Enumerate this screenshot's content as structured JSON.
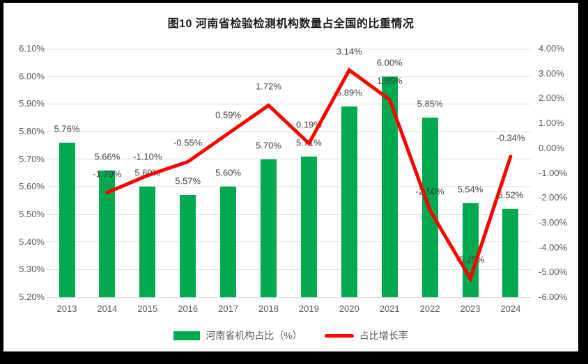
{
  "title": "图10  河南省检验检测机构数量占全国的比重情况",
  "colors": {
    "bar": "#00A84F",
    "line": "#FE0000",
    "gridline": "#D9D9D9",
    "axis_text": "#595959",
    "data_label": "#404040",
    "frame": "#000000",
    "background": "#FFFFFF"
  },
  "legend": {
    "bar_label": "河南省机构占比（%）",
    "line_label": "占比增长率"
  },
  "chart_data": {
    "type": "bar",
    "subtype": "combo bar+line, dual y-axis",
    "title": "图10  河南省检验检测机构数量占全国的比重情况",
    "categories": [
      "2013",
      "2014",
      "2015",
      "2016",
      "2017",
      "2018",
      "2019",
      "2020",
      "2021",
      "2022",
      "2023",
      "2024"
    ],
    "series": [
      {
        "name": "河南省机构占比（%）",
        "type": "bar",
        "axis": "left",
        "values": [
          5.76,
          5.66,
          5.6,
          5.57,
          5.6,
          5.7,
          5.71,
          5.89,
          6.0,
          5.85,
          5.54,
          5.52
        ],
        "labels": [
          "5.76%",
          "5.66%",
          "5.60%",
          "5.57%",
          "5.60%",
          "5.70%",
          "5.71%",
          "5.89%",
          "6.00%",
          "5.85%",
          "5.54%",
          "5.52%"
        ]
      },
      {
        "name": "占比增长率",
        "type": "line",
        "axis": "right",
        "values": [
          null,
          -1.79,
          -1.1,
          -0.55,
          0.59,
          1.72,
          0.19,
          3.14,
          1.95,
          -2.5,
          -5.25,
          -0.34
        ],
        "labels": [
          null,
          "-1.79%",
          "-1.10%",
          "-0.55%",
          "0.59%",
          "1.72%",
          "0.19%",
          "3.14%",
          "1.95%",
          "-2.50%",
          "-5.25%",
          "-0.34%"
        ]
      }
    ],
    "left_axis": {
      "min": 5.2,
      "max": 6.1,
      "step": 0.1,
      "ticks_top_to_bottom": [
        "6.10%",
        "6.00%",
        "5.90%",
        "5.80%",
        "5.70%",
        "5.60%",
        "5.50%",
        "5.40%",
        "5.30%",
        "5.20%"
      ]
    },
    "right_axis": {
      "min": -6.0,
      "max": 4.0,
      "step": 1.0,
      "ticks_top_to_bottom": [
        "4.00%",
        "3.00%",
        "2.00%",
        "1.00%",
        "0.00%",
        "-1.00%",
        "-2.00%",
        "-3.00%",
        "-4.00%",
        "-5.00%",
        "-6.00%"
      ]
    },
    "grid": "horizontal gridlines on primary (left) axis",
    "legend_position": "bottom",
    "xlabel": "",
    "ylabel": ""
  }
}
